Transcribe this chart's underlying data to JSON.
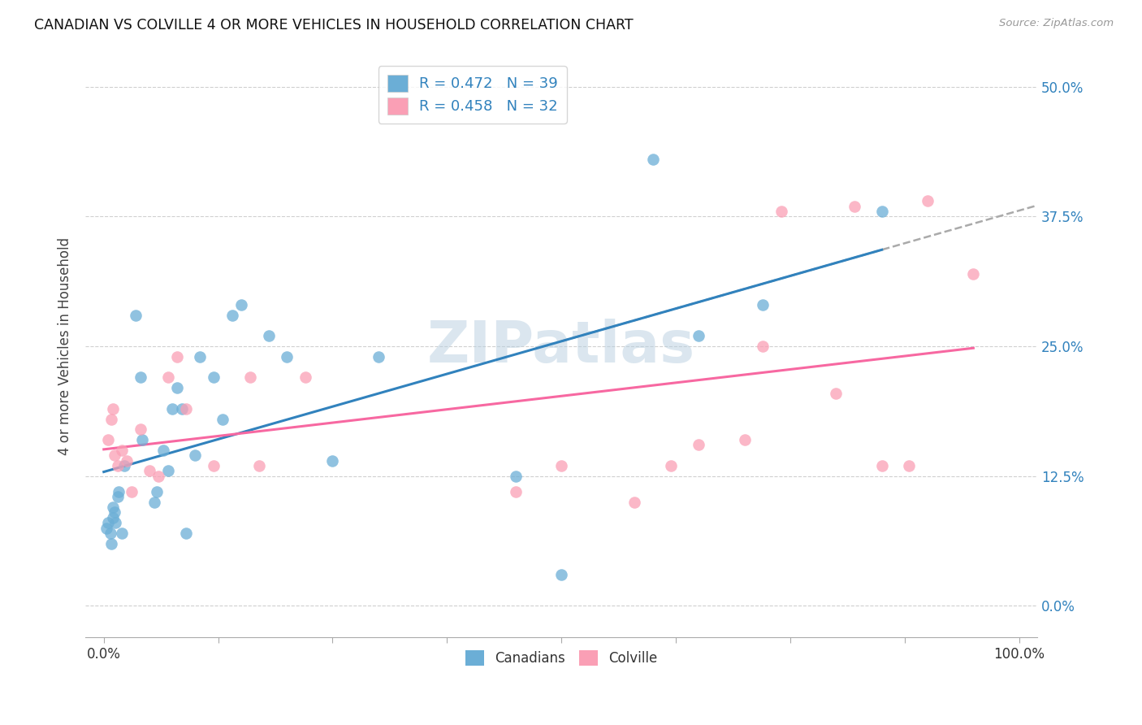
{
  "title": "CANADIAN VS COLVILLE 4 OR MORE VEHICLES IN HOUSEHOLD CORRELATION CHART",
  "source": "Source: ZipAtlas.com",
  "ylabel_label": "4 or more Vehicles in Household",
  "legend_label1": "Canadians",
  "legend_label2": "Colville",
  "r1": 0.472,
  "n1": 39,
  "r2": 0.458,
  "n2": 32,
  "blue_color": "#6baed6",
  "pink_color": "#fa9fb5",
  "trend_blue": "#3182bd",
  "trend_pink": "#f768a1",
  "axis_label_color": "#3182bd",
  "watermark": "ZIPatlas",
  "canadians_x": [
    0.3,
    0.5,
    0.7,
    0.8,
    1.0,
    1.0,
    1.2,
    1.3,
    1.5,
    1.6,
    2.0,
    2.2,
    3.5,
    4.0,
    4.2,
    5.5,
    5.8,
    6.5,
    7.0,
    7.5,
    8.0,
    8.5,
    9.0,
    10.0,
    10.5,
    12.0,
    13.0,
    14.0,
    15.0,
    18.0,
    20.0,
    25.0,
    30.0,
    45.0,
    50.0,
    60.0,
    65.0,
    72.0,
    85.0
  ],
  "canadians_y": [
    7.5,
    8.0,
    7.0,
    6.0,
    8.5,
    9.5,
    9.0,
    8.0,
    10.5,
    11.0,
    7.0,
    13.5,
    28.0,
    22.0,
    16.0,
    10.0,
    11.0,
    15.0,
    13.0,
    19.0,
    21.0,
    19.0,
    7.0,
    14.5,
    24.0,
    22.0,
    18.0,
    28.0,
    29.0,
    26.0,
    24.0,
    14.0,
    24.0,
    12.5,
    3.0,
    43.0,
    26.0,
    29.0,
    38.0
  ],
  "colville_x": [
    0.5,
    0.8,
    1.0,
    1.2,
    1.5,
    2.0,
    2.5,
    3.0,
    4.0,
    5.0,
    6.0,
    7.0,
    8.0,
    9.0,
    12.0,
    16.0,
    17.0,
    22.0,
    45.0,
    50.0,
    58.0,
    62.0,
    65.0,
    70.0,
    72.0,
    74.0,
    80.0,
    82.0,
    85.0,
    88.0,
    90.0,
    95.0
  ],
  "colville_y": [
    16.0,
    18.0,
    19.0,
    14.5,
    13.5,
    15.0,
    14.0,
    11.0,
    17.0,
    13.0,
    12.5,
    22.0,
    24.0,
    19.0,
    13.5,
    22.0,
    13.5,
    22.0,
    11.0,
    13.5,
    10.0,
    13.5,
    15.5,
    16.0,
    25.0,
    38.0,
    20.5,
    38.5,
    13.5,
    13.5,
    39.0,
    32.0
  ],
  "xlim": [
    -2.0,
    102.0
  ],
  "ylim": [
    -3.0,
    53.0
  ],
  "yticks": [
    0.0,
    12.5,
    25.0,
    37.5,
    50.0
  ],
  "ytick_labels": [
    "0.0%",
    "12.5%",
    "25.0%",
    "37.5%",
    "50.0%"
  ],
  "xtick_positions": [
    0,
    12.5,
    25,
    37.5,
    50,
    62.5,
    75,
    87.5,
    100
  ],
  "grid_color": "#d0d0d0",
  "spine_color": "#cccccc"
}
